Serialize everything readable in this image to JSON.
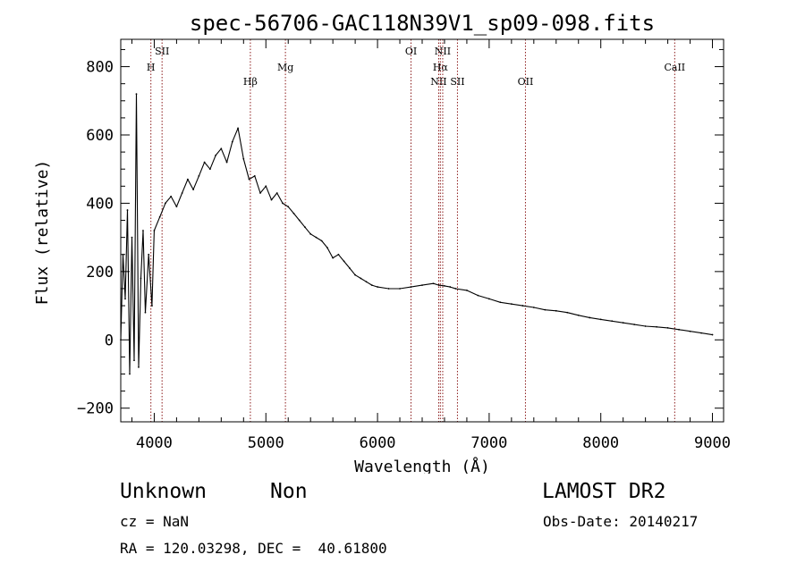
{
  "chart_data": {
    "type": "line",
    "title": "spec-56706-GAC118N39V1_sp09-098.fits",
    "xlabel": "Wavelength (Å)",
    "ylabel": "Flux (relative)",
    "xlim": [
      3700,
      9100
    ],
    "ylim": [
      -240,
      880
    ],
    "xticks": [
      4000,
      5000,
      6000,
      7000,
      8000,
      9000
    ],
    "yticks": [
      -200,
      0,
      200,
      400,
      600,
      800
    ],
    "grid": false,
    "line_color": "#000000",
    "marker_color": "#8b1a1a",
    "series": [
      {
        "x": [
          3700,
          3720,
          3740,
          3760,
          3780,
          3800,
          3820,
          3840,
          3860,
          3880,
          3900,
          3920,
          3950,
          3980,
          4000,
          4050,
          4100,
          4150,
          4200,
          4250,
          4300,
          4350,
          4400,
          4450,
          4500,
          4550,
          4600,
          4650,
          4700,
          4750,
          4800,
          4850,
          4900,
          4950,
          5000,
          5050,
          5100,
          5150,
          5200,
          5250,
          5300,
          5350,
          5400,
          5450,
          5500,
          5550,
          5600,
          5650,
          5700,
          5750,
          5800,
          5850,
          5900,
          5950,
          6000,
          6100,
          6200,
          6300,
          6400,
          6500,
          6550,
          6600,
          6650,
          6700,
          6800,
          6900,
          7000,
          7100,
          7200,
          7300,
          7400,
          7500,
          7600,
          7700,
          7800,
          7900,
          8000,
          8100,
          8200,
          8300,
          8400,
          8500,
          8600,
          8700,
          8800,
          8900,
          9000
        ],
        "y": [
          0,
          250,
          120,
          380,
          -100,
          300,
          -60,
          720,
          -80,
          180,
          320,
          80,
          250,
          100,
          320,
          360,
          400,
          420,
          390,
          430,
          470,
          440,
          480,
          520,
          500,
          540,
          560,
          520,
          580,
          620,
          530,
          470,
          480,
          430,
          450,
          410,
          430,
          400,
          390,
          370,
          350,
          330,
          310,
          300,
          290,
          270,
          240,
          250,
          230,
          210,
          190,
          180,
          170,
          160,
          155,
          150,
          150,
          155,
          160,
          165,
          160,
          158,
          155,
          150,
          145,
          130,
          120,
          110,
          105,
          100,
          95,
          88,
          85,
          80,
          72,
          65,
          60,
          55,
          50,
          45,
          40,
          38,
          35,
          30,
          25,
          20,
          15
        ]
      }
    ],
    "lines": [
      {
        "label": "H",
        "x": 3970,
        "row": 1
      },
      {
        "label": "SII",
        "x": 4070,
        "row": 0
      },
      {
        "label": "Hβ",
        "x": 4861,
        "row": 2
      },
      {
        "label": "Mg",
        "x": 5175,
        "row": 1
      },
      {
        "label": "OI",
        "x": 6300,
        "row": 0
      },
      {
        "label": "NII",
        "x": 6548,
        "row": 2
      },
      {
        "label": "Hα",
        "x": 6563,
        "row": 1
      },
      {
        "label": "NII",
        "x": 6584,
        "row": 0
      },
      {
        "label": "SII",
        "x": 6716,
        "row": 2
      },
      {
        "label": "OII",
        "x": 7325,
        "row": 2
      },
      {
        "label": "CaII",
        "x": 8662,
        "row": 1
      }
    ]
  },
  "info": {
    "object_class": "Unknown",
    "subclass": "Non",
    "survey": "LAMOST DR2",
    "cz": "cz = NaN",
    "obs_date": "Obs-Date: 20140217",
    "ra_dec": "RA = 120.03298, DEC =  40.61800"
  }
}
